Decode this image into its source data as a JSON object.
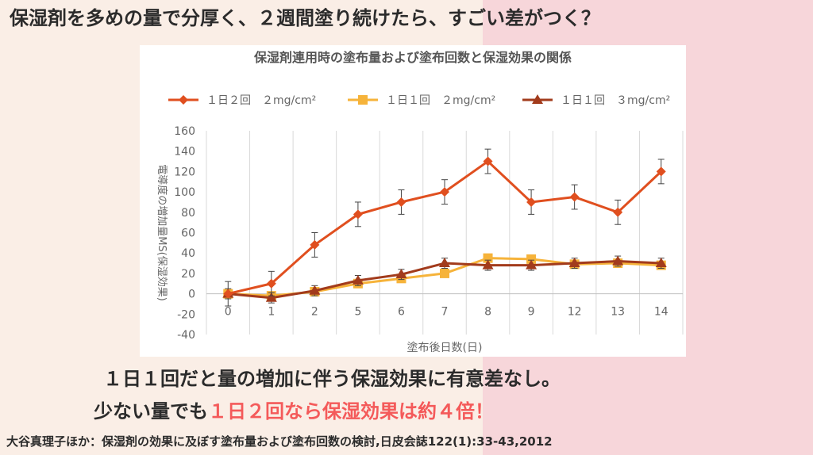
{
  "slide": {
    "title": "保湿剤を多めの量で分厚く、２週間塗り続けたら、すごい差がつく？",
    "message_line1": "１日１回だと量の増加に伴う保湿効果に有意差なし。",
    "message_line2_prefix": "少ない量でも",
    "message_line2_highlight": "１日２回なら保湿効果は約４倍！",
    "citation": "大谷真理子ほか：保湿剤の効果に及ぼす塗布量および塗布回数の検討,日皮会誌122(1):33-43,2012"
  },
  "colors": {
    "series1": "#e04f1f",
    "series2": "#f6b33a",
    "series3": "#a23b1c",
    "grid": "#d9d9d9",
    "axis_text": "#666666",
    "highlight": "#f45a5a"
  },
  "chart_data": {
    "type": "line",
    "title": "保湿剤連用時の塗布量および塗布回数と保湿効果の関係",
    "xlabel": "塗布後日数(日)",
    "ylabel": "電導度の増加量MS(保湿効果)",
    "ylim": [
      -40,
      160
    ],
    "yticks": [
      -40,
      -20,
      0,
      20,
      40,
      60,
      80,
      100,
      120,
      140,
      160
    ],
    "categories": [
      "0",
      "1",
      "2",
      "5",
      "6",
      "7",
      "8",
      "9",
      "12",
      "13",
      "14"
    ],
    "grid": "vertical",
    "legend_position": "top",
    "series": [
      {
        "name": "１日２回　２mg/cm²",
        "marker": "diamond",
        "color_key": "series1",
        "values": [
          0,
          10,
          48,
          78,
          90,
          100,
          130,
          90,
          95,
          80,
          120
        ],
        "errors": [
          12,
          12,
          12,
          12,
          12,
          12,
          12,
          12,
          12,
          12,
          12
        ]
      },
      {
        "name": "１日１回　２mg/cm²",
        "marker": "square",
        "color_key": "series2",
        "values": [
          0,
          -2,
          2,
          10,
          15,
          20,
          35,
          34,
          29,
          30,
          28
        ],
        "errors": [
          0,
          0,
          0,
          0,
          0,
          0,
          0,
          0,
          0,
          0,
          0
        ]
      },
      {
        "name": "１日１回　３mg/cm²",
        "marker": "triangle",
        "color_key": "series3",
        "values": [
          0,
          -4,
          3,
          13,
          19,
          30,
          28,
          28,
          30,
          32,
          30
        ],
        "errors": [
          5,
          5,
          5,
          5,
          5,
          5,
          5,
          5,
          5,
          5,
          5
        ]
      }
    ]
  }
}
